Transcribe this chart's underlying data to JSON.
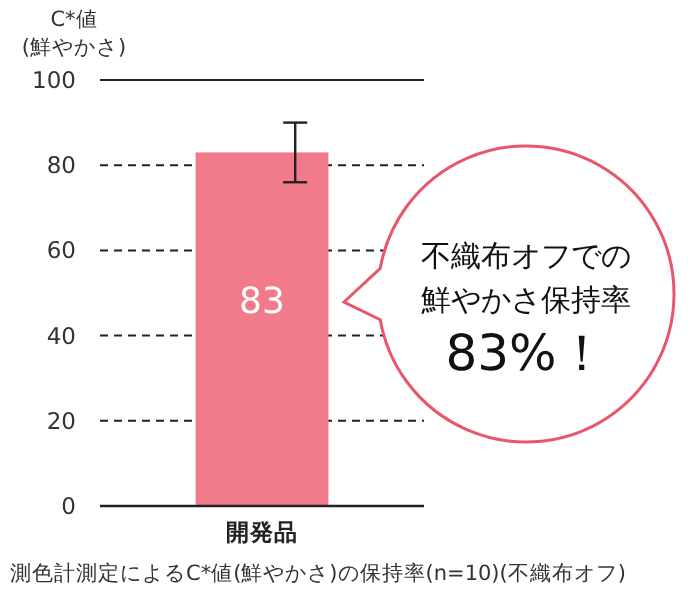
{
  "chart_data": {
    "type": "bar",
    "ylabel": "C*値\n(鮮やかさ)",
    "categories": [
      "開発品"
    ],
    "series": [
      {
        "color": "#f27b8b",
        "values": [
          83
        ],
        "errors": [
          [
            76,
            90
          ]
        ],
        "value_labels": [
          "83"
        ]
      }
    ],
    "ylim": [
      0,
      100
    ],
    "yticks": [
      0,
      20,
      40,
      60,
      80,
      100
    ],
    "grid": "y",
    "annotations": [
      "不織布オフでの",
      "鮮やかさ保持率",
      "83%！",
      "測色計測定によるC*値(鮮やかさ)の保持率(n=10)(不織布オフ)"
    ]
  }
}
